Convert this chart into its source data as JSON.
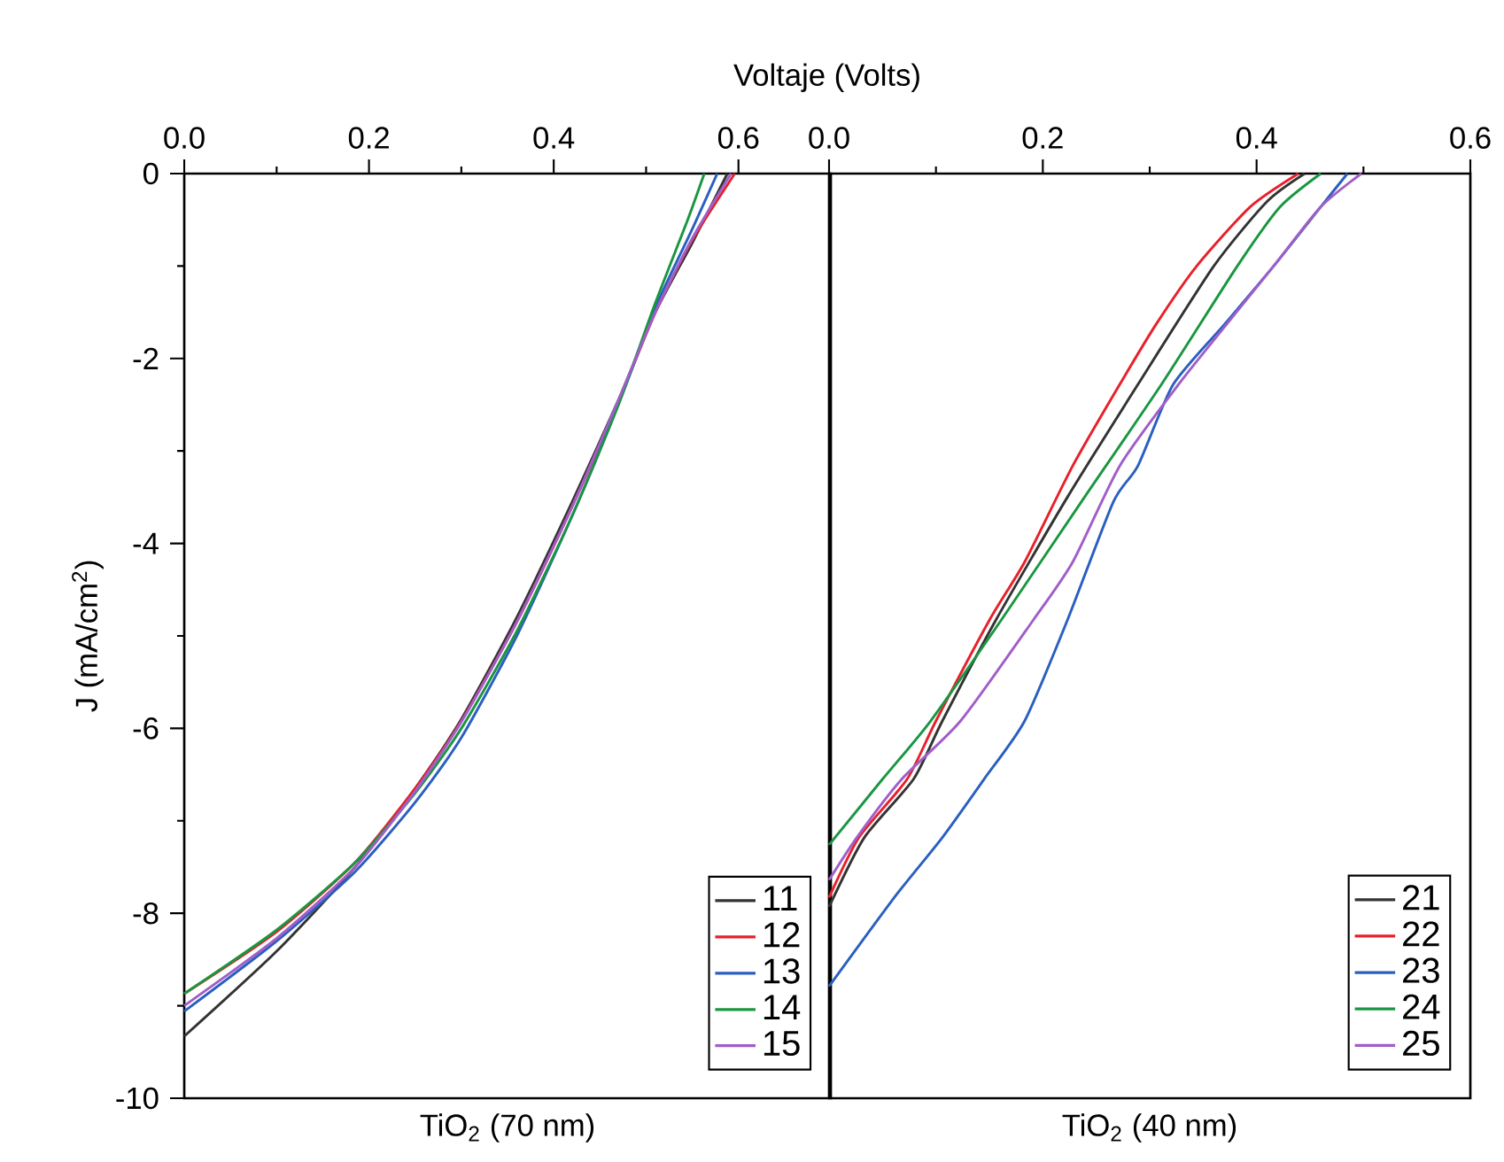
{
  "chart_data": [
    {
      "type": "line",
      "title": "Voltaje (Volts)",
      "xlabel": "TiO$_{2}$ (70 nm)",
      "ylabel": "J (mA/cm$^{2}$)",
      "xlim": [
        0,
        0.7
      ],
      "xticks": [
        {
          "value": 0,
          "label": "0.0"
        },
        0.2,
        0.4,
        0.6
      ],
      "ylim": [
        -10,
        0
      ],
      "yticks": [
        -10,
        -8,
        -6,
        -4,
        -2,
        0
      ],
      "legend": "bottom right",
      "grid": false,
      "line_style": "solid",
      "marker": "none",
      "series": [
        {
          "name": "11",
          "color": "#333333",
          "x": [
            0,
            0.1,
            0.185,
            0.25,
            0.3,
            0.36,
            0.42,
            0.47,
            0.51,
            0.55,
            0.588
          ],
          "values": [
            -9.33,
            -8.41,
            -7.5,
            -6.65,
            -5.9,
            -4.8,
            -3.55,
            -2.45,
            -1.5,
            -0.75,
            0
          ]
        },
        {
          "name": "12",
          "color": "#e8202a",
          "x": [
            0,
            0.1,
            0.185,
            0.25,
            0.3,
            0.36,
            0.42,
            0.47,
            0.51,
            0.55,
            0.596
          ],
          "values": [
            -8.87,
            -8.2,
            -7.45,
            -6.65,
            -5.92,
            -4.85,
            -3.6,
            -2.47,
            -1.5,
            -0.72,
            0
          ]
        },
        {
          "name": "13",
          "color": "#2a5fc0",
          "x": [
            0,
            0.1,
            0.185,
            0.25,
            0.3,
            0.36,
            0.42,
            0.47,
            0.51,
            0.55,
            0.577
          ],
          "values": [
            -9.06,
            -8.3,
            -7.55,
            -6.8,
            -6.1,
            -5.0,
            -3.7,
            -2.5,
            -1.45,
            -0.6,
            0
          ]
        },
        {
          "name": "14",
          "color": "#1a9641",
          "x": [
            0,
            0.1,
            0.185,
            0.25,
            0.3,
            0.36,
            0.42,
            0.47,
            0.51,
            0.545,
            0.563
          ],
          "values": [
            -8.87,
            -8.18,
            -7.45,
            -6.7,
            -6.0,
            -4.95,
            -3.7,
            -2.5,
            -1.4,
            -0.5,
            0
          ]
        },
        {
          "name": "15",
          "color": "#a05ec8",
          "x": [
            0,
            0.1,
            0.185,
            0.25,
            0.3,
            0.36,
            0.42,
            0.47,
            0.51,
            0.55,
            0.592
          ],
          "values": [
            -9.0,
            -8.27,
            -7.5,
            -6.68,
            -5.93,
            -4.85,
            -3.6,
            -2.45,
            -1.5,
            -0.7,
            0
          ]
        }
      ]
    },
    {
      "type": "line",
      "xlabel": "TiO$_{2}$ (40 nm)",
      "xlim": [
        0,
        0.6
      ],
      "xticks": [
        {
          "value": 0,
          "label": "0.0"
        },
        0.2,
        0.4,
        0.6
      ],
      "ylim": [
        -10,
        0
      ],
      "tick_labels": "x",
      "legend": "bottom right",
      "grid": false,
      "line_style": "solid",
      "marker": "none",
      "series": [
        {
          "name": "21",
          "color": "#333333",
          "x": [
            0,
            0.033,
            0.079,
            0.106,
            0.156,
            0.223,
            0.289,
            0.36,
            0.41,
            0.445
          ],
          "values": [
            -7.93,
            -7.18,
            -6.55,
            -5.92,
            -4.83,
            -3.5,
            -2.28,
            -1.0,
            -0.3,
            0
          ]
        },
        {
          "name": "22",
          "color": "#e8202a",
          "x": [
            0,
            0.028,
            0.073,
            0.1,
            0.15,
            0.183,
            0.228,
            0.272,
            0.306,
            0.344,
            0.394,
            0.439
          ],
          "values": [
            -7.83,
            -7.18,
            -6.55,
            -5.92,
            -4.83,
            -4.2,
            -3.16,
            -2.28,
            -1.63,
            -1.0,
            -0.36,
            0
          ]
        },
        {
          "name": "23",
          "color": "#2a5fc0",
          "x": [
            0,
            0.061,
            0.106,
            0.145,
            0.183,
            0.223,
            0.266,
            0.289,
            0.322,
            0.37,
            0.416,
            0.46,
            0.485
          ],
          "values": [
            -8.79,
            -7.83,
            -7.18,
            -6.55,
            -5.92,
            -4.83,
            -3.55,
            -3.16,
            -2.28,
            -1.63,
            -1.0,
            -0.36,
            0
          ]
        },
        {
          "name": "24",
          "color": "#1a9641",
          "x": [
            0,
            0.05,
            0.095,
            0.161,
            0.239,
            0.311,
            0.382,
            0.422,
            0.46
          ],
          "values": [
            -7.26,
            -6.55,
            -5.92,
            -4.83,
            -3.5,
            -2.28,
            -1.0,
            -0.36,
            0
          ]
        },
        {
          "name": "25",
          "color": "#a05ec8",
          "x": [
            0,
            0.026,
            0.068,
            0.123,
            0.191,
            0.228,
            0.272,
            0.327,
            0.372,
            0.416,
            0.46,
            0.498
          ],
          "values": [
            -7.64,
            -7.18,
            -6.55,
            -5.92,
            -4.83,
            -4.2,
            -3.16,
            -2.28,
            -1.63,
            -1.0,
            -0.36,
            0
          ]
        }
      ]
    }
  ]
}
